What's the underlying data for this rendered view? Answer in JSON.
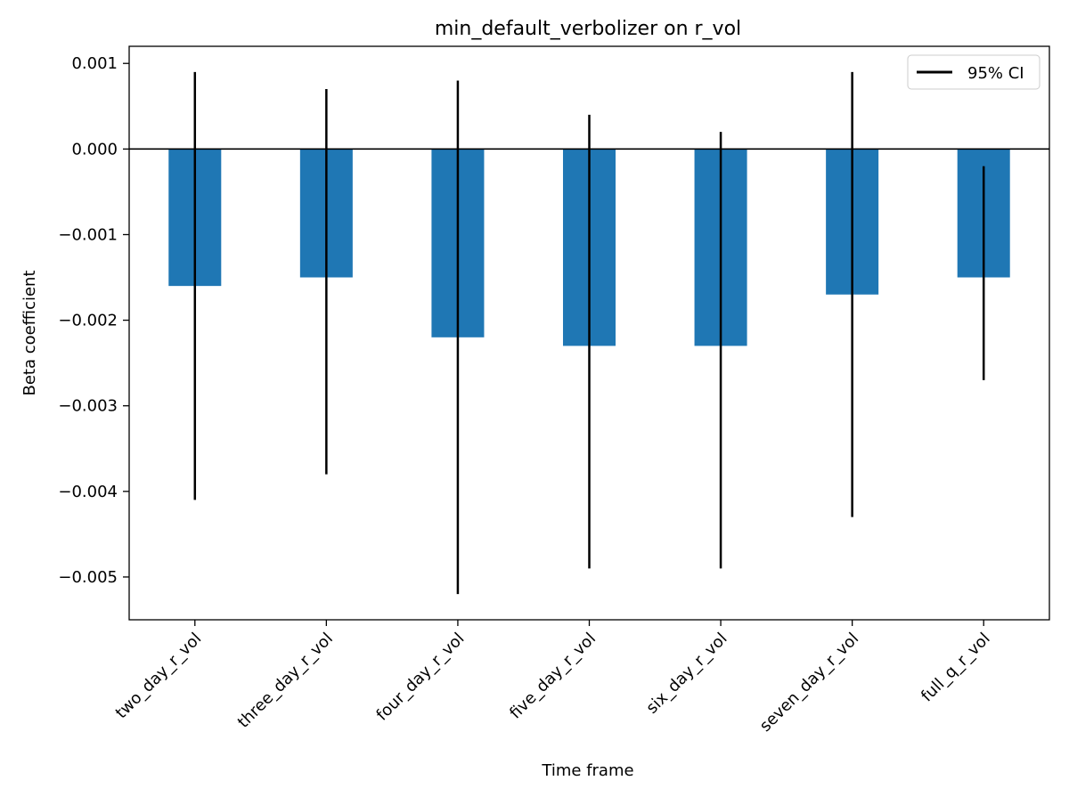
{
  "chart_data": {
    "type": "bar",
    "title": "min_default_verbolizer on r_vol",
    "xlabel": "Time frame",
    "ylabel": "Beta coefficient",
    "categories": [
      "two_day_r_vol",
      "three_day_r_vol",
      "four_day_r_vol",
      "five_day_r_vol",
      "six_day_r_vol",
      "seven_day_r_vol",
      "full_q_r_vol"
    ],
    "values": [
      -0.0016,
      -0.0015,
      -0.0022,
      -0.0023,
      -0.0023,
      -0.0017,
      -0.0015
    ],
    "ci_low": [
      -0.0041,
      -0.0038,
      -0.0052,
      -0.0049,
      -0.0049,
      -0.0043,
      -0.0027
    ],
    "ci_high": [
      0.0009,
      0.0007,
      0.0008,
      0.0004,
      0.0002,
      0.0009,
      -0.0002
    ],
    "ylim": [
      -0.0055,
      0.0012
    ],
    "yticks": [
      0.001,
      0.0,
      -0.001,
      -0.002,
      -0.003,
      -0.004,
      -0.005
    ],
    "ytick_labels": [
      "0.001",
      "0.000",
      "−0.001",
      "−0.002",
      "−0.003",
      "−0.004",
      "−0.005"
    ],
    "reference_line": 0,
    "grid": false,
    "legend": {
      "placement": "top-right",
      "entries": [
        {
          "label": "95% CI",
          "marker": "line"
        }
      ]
    },
    "colors": {
      "bar": "#1f77b4",
      "errorbar": "#000000",
      "axis": "#000000"
    }
  }
}
